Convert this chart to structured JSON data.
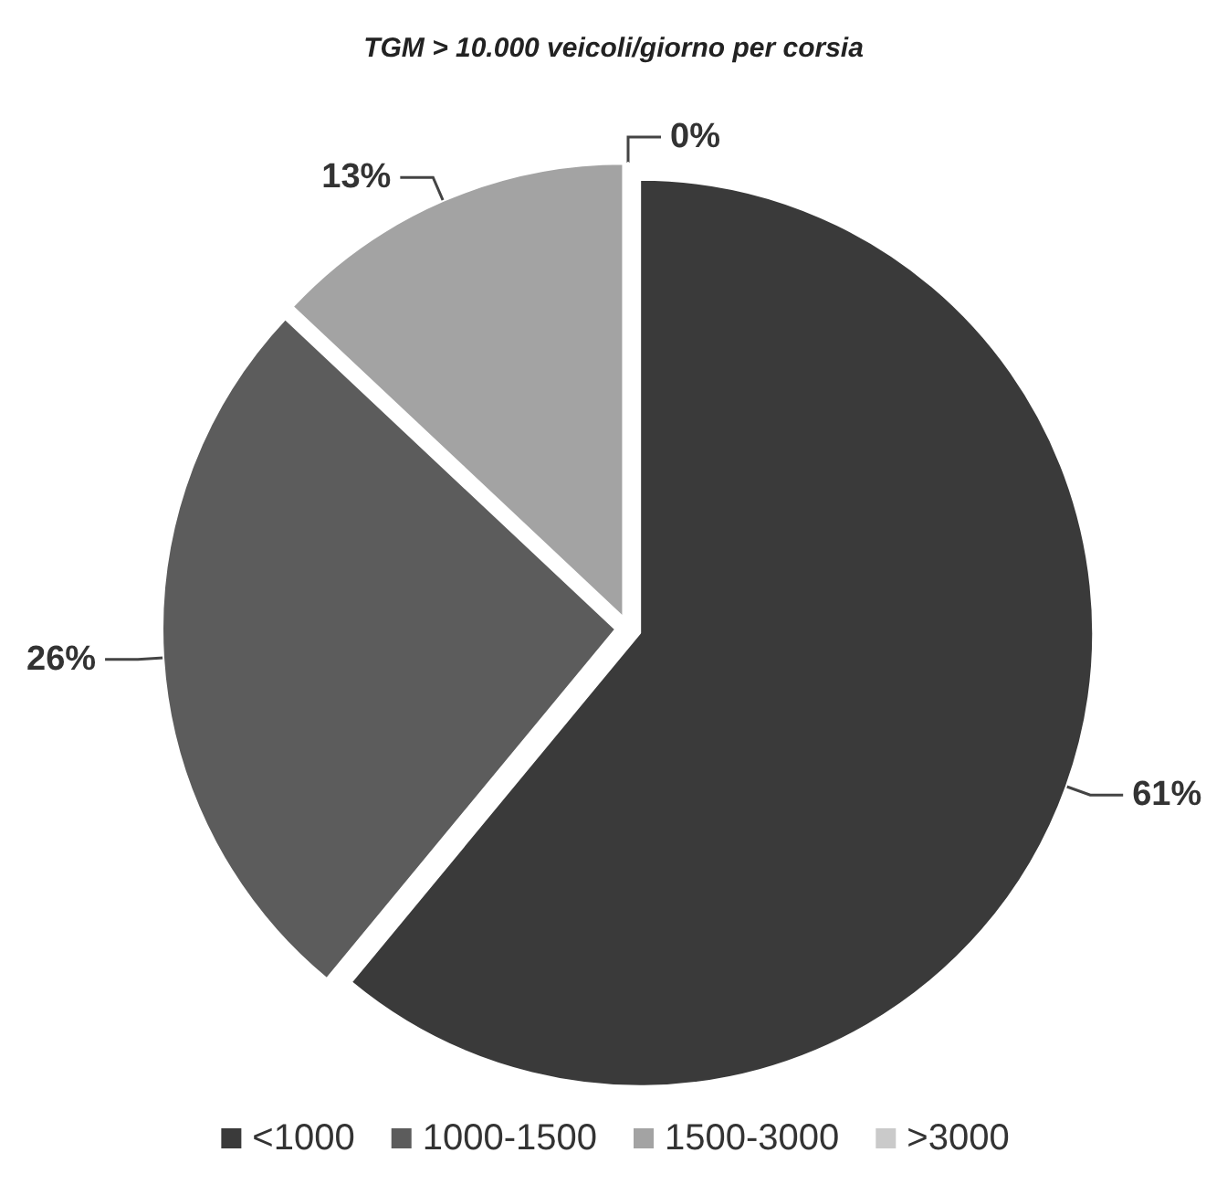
{
  "chart_data": {
    "type": "pie",
    "title": "TGM > 10.000 veicoli/giorno per corsia",
    "categories": [
      "<1000",
      "1000-1500",
      "1500-3000",
      ">3000"
    ],
    "values": [
      61,
      26,
      13,
      0
    ],
    "colors": [
      "#3a3a3a",
      "#5c5c5c",
      "#a3a3a3",
      "#cacaca"
    ],
    "value_labels": [
      "61%",
      "26%",
      "13%",
      "0%"
    ],
    "legend": "bottom"
  }
}
